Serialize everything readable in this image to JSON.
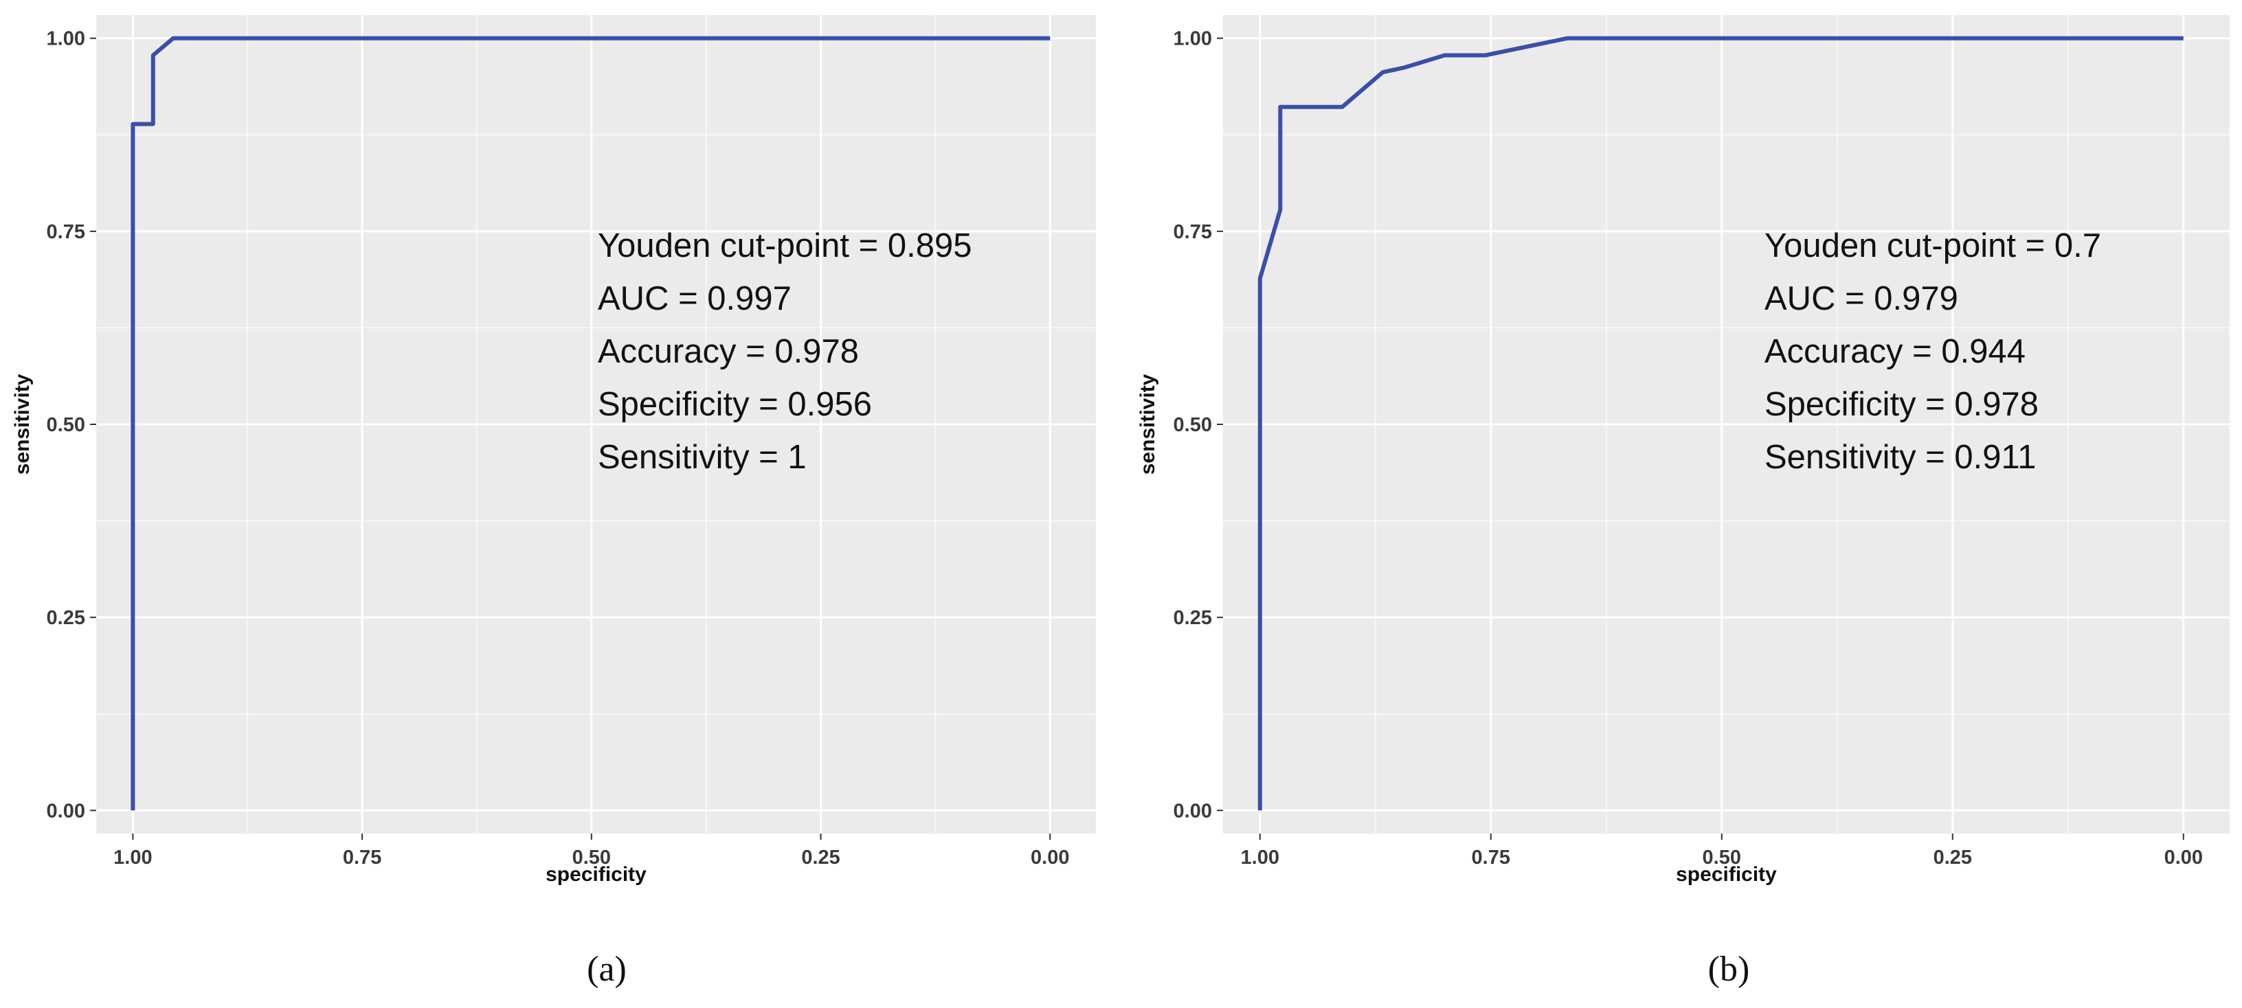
{
  "colors": {
    "panel": "#ebebeb",
    "grid": "#ffffff",
    "curve": "#3a4fa7",
    "text": "#111111"
  },
  "chart_data": [
    {
      "type": "line",
      "panel_label": "(a)",
      "xlabel": "specificity",
      "ylabel": "sensitivity",
      "xlim": [
        1.04,
        -0.05
      ],
      "ylim": [
        -0.03,
        1.03
      ],
      "x_reversed": true,
      "grid": true,
      "xticks": [
        1.0,
        0.75,
        0.5,
        0.25,
        0.0
      ],
      "xtick_labels": [
        "1.00",
        "0.75",
        "0.50",
        "0.25",
        "0.00"
      ],
      "yticks": [
        0.0,
        0.25,
        0.5,
        0.75,
        1.0
      ],
      "ytick_labels": [
        "0.00",
        "0.25",
        "0.50",
        "0.75",
        "1.00"
      ],
      "series": [
        {
          "x": [
            1.0,
            1.0,
            0.978,
            0.978,
            0.956,
            0.0
          ],
          "y": [
            0.0,
            0.889,
            0.889,
            0.978,
            1.0,
            1.0
          ]
        }
      ],
      "annotations": [
        "Youden cut-point = 0.895",
        "AUC = 0.997",
        "Accuracy = 0.978",
        "Specificity = 0.956",
        "Sensitivity = 1"
      ]
    },
    {
      "type": "line",
      "panel_label": "(b)",
      "xlabel": "specificity",
      "ylabel": "sensitivity",
      "xlim": [
        1.04,
        -0.05
      ],
      "ylim": [
        -0.03,
        1.03
      ],
      "x_reversed": true,
      "grid": true,
      "xticks": [
        1.0,
        0.75,
        0.5,
        0.25,
        0.0
      ],
      "xtick_labels": [
        "1.00",
        "0.75",
        "0.50",
        "0.25",
        "0.00"
      ],
      "yticks": [
        0.0,
        0.25,
        0.5,
        0.75,
        1.0
      ],
      "ytick_labels": [
        "0.00",
        "0.25",
        "0.50",
        "0.75",
        "1.00"
      ],
      "series": [
        {
          "x": [
            1.0,
            1.0,
            0.978,
            0.978,
            0.911,
            0.867,
            0.844,
            0.8,
            0.756,
            0.667,
            0.0
          ],
          "y": [
            0.0,
            0.689,
            0.778,
            0.911,
            0.911,
            0.956,
            0.962,
            0.978,
            0.978,
            1.0,
            1.0
          ]
        }
      ],
      "annotations": [
        "Youden cut-point = 0.7",
        "AUC = 0.979",
        "Accuracy = 0.944",
        "Specificity = 0.978",
        "Sensitivity = 0.911"
      ]
    }
  ]
}
